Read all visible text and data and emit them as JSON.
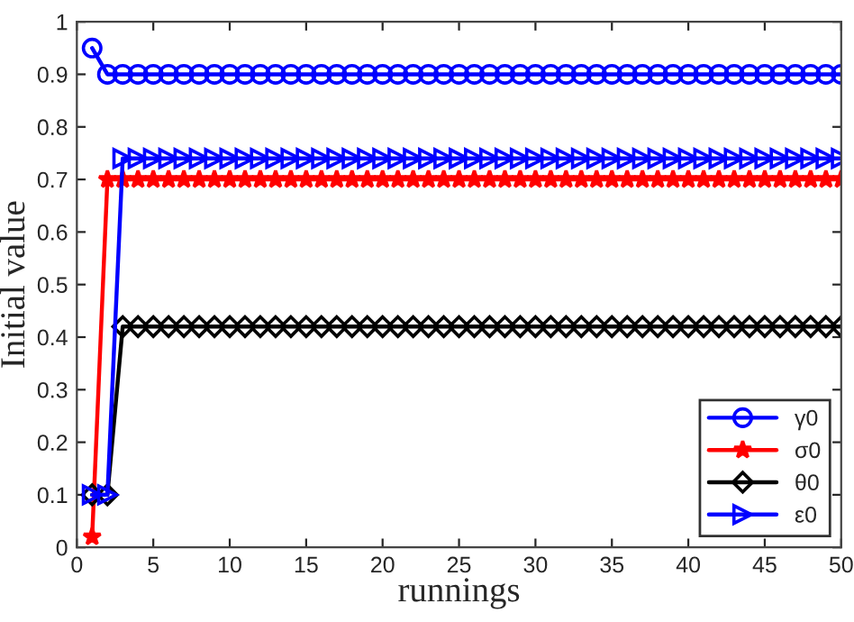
{
  "chart_data": {
    "type": "line",
    "xlabel": "runnings",
    "ylabel": "Initial value",
    "x": [
      1,
      2,
      3,
      4,
      5,
      6,
      7,
      8,
      9,
      10,
      11,
      12,
      13,
      14,
      15,
      16,
      17,
      18,
      19,
      20,
      21,
      22,
      23,
      24,
      25,
      26,
      27,
      28,
      29,
      30,
      31,
      32,
      33,
      34,
      35,
      36,
      37,
      38,
      39,
      40,
      41,
      42,
      43,
      44,
      45,
      46,
      47,
      48,
      49,
      50
    ],
    "series": [
      {
        "name": "γ0",
        "color": "#0000ff",
        "marker": "circle",
        "values": [
          0.95,
          0.9,
          0.9,
          0.9,
          0.9,
          0.9,
          0.9,
          0.9,
          0.9,
          0.9,
          0.9,
          0.9,
          0.9,
          0.9,
          0.9,
          0.9,
          0.9,
          0.9,
          0.9,
          0.9,
          0.9,
          0.9,
          0.9,
          0.9,
          0.9,
          0.9,
          0.9,
          0.9,
          0.9,
          0.9,
          0.9,
          0.9,
          0.9,
          0.9,
          0.9,
          0.9,
          0.9,
          0.9,
          0.9,
          0.9,
          0.9,
          0.9,
          0.9,
          0.9,
          0.9,
          0.9,
          0.9,
          0.9,
          0.9,
          0.9
        ]
      },
      {
        "name": "σ0",
        "color": "#ff0000",
        "marker": "star",
        "values": [
          0.02,
          0.7,
          0.7,
          0.7,
          0.7,
          0.7,
          0.7,
          0.7,
          0.7,
          0.7,
          0.7,
          0.7,
          0.7,
          0.7,
          0.7,
          0.7,
          0.7,
          0.7,
          0.7,
          0.7,
          0.7,
          0.7,
          0.7,
          0.7,
          0.7,
          0.7,
          0.7,
          0.7,
          0.7,
          0.7,
          0.7,
          0.7,
          0.7,
          0.7,
          0.7,
          0.7,
          0.7,
          0.7,
          0.7,
          0.7,
          0.7,
          0.7,
          0.7,
          0.7,
          0.7,
          0.7,
          0.7,
          0.7,
          0.7,
          0.7
        ]
      },
      {
        "name": "θ0",
        "color": "#000000",
        "marker": "diamond",
        "values": [
          0.1,
          0.1,
          0.42,
          0.42,
          0.42,
          0.42,
          0.42,
          0.42,
          0.42,
          0.42,
          0.42,
          0.42,
          0.42,
          0.42,
          0.42,
          0.42,
          0.42,
          0.42,
          0.42,
          0.42,
          0.42,
          0.42,
          0.42,
          0.42,
          0.42,
          0.42,
          0.42,
          0.42,
          0.42,
          0.42,
          0.42,
          0.42,
          0.42,
          0.42,
          0.42,
          0.42,
          0.42,
          0.42,
          0.42,
          0.42,
          0.42,
          0.42,
          0.42,
          0.42,
          0.42,
          0.42,
          0.42,
          0.42,
          0.42,
          0.42
        ]
      },
      {
        "name": "ε0",
        "color": "#0000ff",
        "marker": "triangle",
        "values": [
          0.1,
          0.1,
          0.74,
          0.74,
          0.74,
          0.74,
          0.74,
          0.74,
          0.74,
          0.74,
          0.74,
          0.74,
          0.74,
          0.74,
          0.74,
          0.74,
          0.74,
          0.74,
          0.74,
          0.74,
          0.74,
          0.74,
          0.74,
          0.74,
          0.74,
          0.74,
          0.74,
          0.74,
          0.74,
          0.74,
          0.74,
          0.74,
          0.74,
          0.74,
          0.74,
          0.74,
          0.74,
          0.74,
          0.74,
          0.74,
          0.74,
          0.74,
          0.74,
          0.74,
          0.74,
          0.74,
          0.74,
          0.74,
          0.74,
          0.74
        ]
      }
    ],
    "xlim": [
      0,
      50
    ],
    "xticks": [
      0,
      5,
      10,
      15,
      20,
      25,
      30,
      35,
      40,
      45,
      50
    ],
    "ylim": [
      0,
      1
    ],
    "yticks": [
      0,
      0.1,
      0.2,
      0.3,
      0.4,
      0.5,
      0.6,
      0.7,
      0.8,
      0.9,
      1
    ],
    "grid": false,
    "legend": "bottom right",
    "line_style": "solid"
  }
}
